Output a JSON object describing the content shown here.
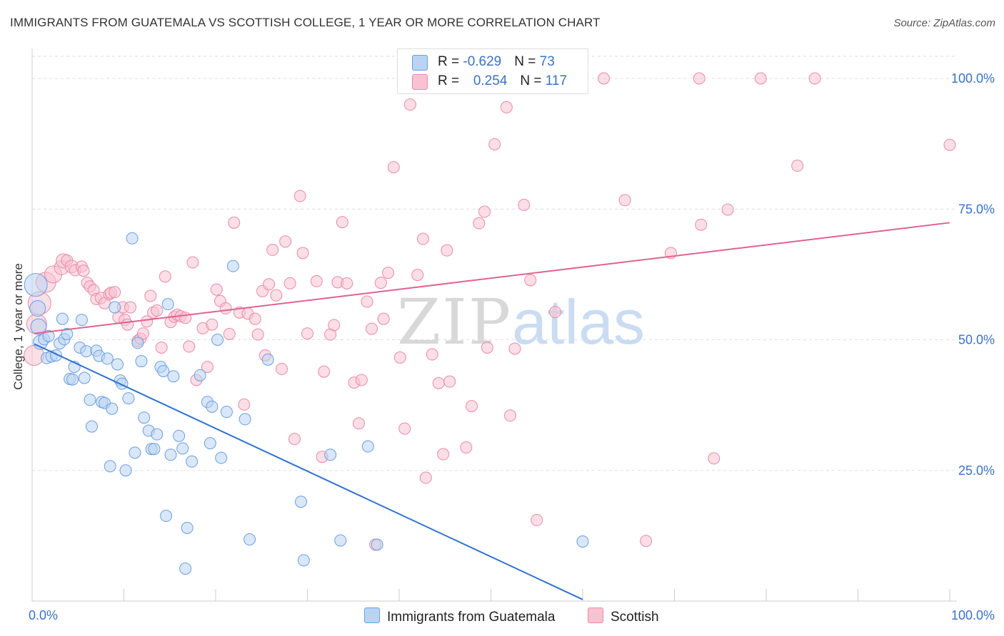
{
  "header": {
    "title": "IMMIGRANTS FROM GUATEMALA VS SCOTTISH COLLEGE, 1 YEAR OR MORE CORRELATION CHART",
    "source": "Source: ZipAtlas.com"
  },
  "watermark": {
    "zip": "ZIP",
    "atlas": "atlas"
  },
  "legend_top": [
    {
      "r_label": "R = ",
      "r_value": "-0.629",
      "n_label": "N = ",
      "n_value": "73"
    },
    {
      "r_label": "R = ",
      "r_value": "0.254",
      "n_label": "N = ",
      "n_value": "117"
    }
  ],
  "colors": {
    "blue_fill": "#b9d3f3",
    "blue_edge": "#6b9fdf",
    "blue_line": "#2f72d0",
    "pink_fill": "#f8c2d2",
    "pink_edge": "#e88ba8",
    "pink_line": "#e0628f",
    "tick_label": "#3a72c6",
    "grid": "#dddddd"
  },
  "chart_data": {
    "type": "scatter",
    "title": "IMMIGRANTS FROM GUATEMALA VS SCOTTISH COLLEGE, 1 YEAR OR MORE CORRELATION CHART",
    "xlabel": "",
    "ylabel": "College, 1 year or more",
    "xlim": [
      0,
      100
    ],
    "ylim": [
      0,
      100
    ],
    "x_tick_labels": [
      {
        "value": 0,
        "label": "0.0%"
      },
      {
        "value": 100,
        "label": "100.0%"
      }
    ],
    "y_tick_labels": [
      {
        "value": 25,
        "label": "25.0%"
      },
      {
        "value": 50,
        "label": "50.0%"
      },
      {
        "value": 75,
        "label": "75.0%"
      },
      {
        "value": 100,
        "label": "100.0%"
      }
    ],
    "grid": true,
    "legend_position": "bottom",
    "series": [
      {
        "name": "Immigrants from Guatemala",
        "color": "#6b9fdf",
        "r": -0.629,
        "n": 73,
        "trend": {
          "x": [
            0,
            60
          ],
          "y": [
            49.2,
            0.3
          ]
        },
        "points": [
          [
            0.4,
            60.5,
            16
          ],
          [
            0.6,
            56.0,
            11
          ],
          [
            0.7,
            52.5,
            11
          ],
          [
            0.9,
            49.5,
            10
          ],
          [
            1.3,
            50.1,
            8
          ],
          [
            1.6,
            46.5,
            8
          ],
          [
            1.8,
            50.7,
            8
          ],
          [
            2.1,
            46.8,
            8
          ],
          [
            2.6,
            47.0,
            8
          ],
          [
            3.0,
            49.3,
            8
          ],
          [
            3.3,
            54.0,
            8
          ],
          [
            3.5,
            50.1,
            8
          ],
          [
            3.8,
            51.1,
            8
          ],
          [
            4.1,
            42.5,
            8
          ],
          [
            4.4,
            42.4,
            8
          ],
          [
            4.6,
            44.8,
            8
          ],
          [
            5.2,
            48.5,
            8
          ],
          [
            5.4,
            53.8,
            8
          ],
          [
            5.7,
            42.7,
            8
          ],
          [
            5.9,
            47.8,
            8
          ],
          [
            6.3,
            38.5,
            8
          ],
          [
            6.5,
            33.4,
            8
          ],
          [
            7.0,
            47.9,
            8
          ],
          [
            7.3,
            46.9,
            8
          ],
          [
            7.6,
            38.1,
            8
          ],
          [
            7.9,
            37.9,
            8
          ],
          [
            8.2,
            46.4,
            8
          ],
          [
            8.5,
            25.8,
            8
          ],
          [
            8.7,
            36.8,
            8
          ],
          [
            9.0,
            56.2,
            8
          ],
          [
            9.3,
            45.3,
            8
          ],
          [
            9.6,
            42.2,
            8
          ],
          [
            9.8,
            41.6,
            8
          ],
          [
            10.2,
            25.0,
            8
          ],
          [
            10.5,
            38.8,
            8
          ],
          [
            10.9,
            69.4,
            8
          ],
          [
            11.2,
            28.4,
            8
          ],
          [
            11.5,
            49.4,
            8
          ],
          [
            11.9,
            45.9,
            8
          ],
          [
            12.2,
            35.1,
            8
          ],
          [
            12.7,
            32.6,
            8
          ],
          [
            13.0,
            29.1,
            8
          ],
          [
            13.3,
            29.1,
            8
          ],
          [
            13.6,
            31.9,
            8
          ],
          [
            14.0,
            44.8,
            8
          ],
          [
            14.3,
            44.0,
            8
          ],
          [
            14.6,
            16.3,
            8
          ],
          [
            14.8,
            56.8,
            8
          ],
          [
            15.1,
            28.0,
            8
          ],
          [
            15.4,
            43.0,
            8
          ],
          [
            16.0,
            31.6,
            8
          ],
          [
            16.4,
            29.2,
            8
          ],
          [
            16.7,
            6.2,
            8
          ],
          [
            16.9,
            14.0,
            8
          ],
          [
            17.4,
            26.7,
            8
          ],
          [
            18.3,
            43.2,
            8
          ],
          [
            19.1,
            38.1,
            8
          ],
          [
            19.4,
            30.2,
            8
          ],
          [
            19.6,
            37.2,
            8
          ],
          [
            20.2,
            50.0,
            8
          ],
          [
            20.6,
            27.4,
            8
          ],
          [
            21.2,
            36.2,
            8
          ],
          [
            21.9,
            64.1,
            8
          ],
          [
            23.2,
            34.8,
            8
          ],
          [
            23.7,
            11.8,
            8
          ],
          [
            25.7,
            46.2,
            8
          ],
          [
            29.3,
            19.0,
            8
          ],
          [
            29.6,
            7.8,
            8
          ],
          [
            32.5,
            28.0,
            8
          ],
          [
            33.6,
            11.6,
            8
          ],
          [
            36.6,
            29.6,
            8
          ],
          [
            37.6,
            10.8,
            8
          ],
          [
            60.0,
            11.4,
            8
          ]
        ]
      },
      {
        "name": "Scottish",
        "color": "#e88ba8",
        "r": 0.254,
        "n": 117,
        "trend": {
          "x": [
            0,
            100
          ],
          "y": [
            51.2,
            72.4
          ]
        },
        "points": [
          [
            0.2,
            47.0,
            14
          ],
          [
            0.5,
            53.0,
            14
          ],
          [
            0.8,
            57.0,
            16
          ],
          [
            1.5,
            61.0,
            14
          ],
          [
            2.3,
            62.5,
            12
          ],
          [
            3.2,
            63.8,
            10
          ],
          [
            3.4,
            65.1,
            10
          ],
          [
            3.8,
            65.2,
            8
          ],
          [
            4.3,
            64.0,
            9
          ],
          [
            4.7,
            63.3,
            8
          ],
          [
            5.4,
            64.0,
            8
          ],
          [
            5.6,
            63.2,
            8
          ],
          [
            6.0,
            60.9,
            8
          ],
          [
            6.3,
            60.2,
            8
          ],
          [
            6.7,
            59.5,
            8
          ],
          [
            7.0,
            57.8,
            8
          ],
          [
            7.5,
            58.0,
            8
          ],
          [
            7.9,
            57.0,
            8
          ],
          [
            8.4,
            58.7,
            8
          ],
          [
            8.6,
            59.0,
            8
          ],
          [
            9.0,
            59.1,
            8
          ],
          [
            9.4,
            54.3,
            8
          ],
          [
            9.9,
            56.2,
            8
          ],
          [
            10.1,
            53.8,
            8
          ],
          [
            10.4,
            52.9,
            8
          ],
          [
            10.7,
            56.2,
            8
          ],
          [
            11.5,
            49.8,
            8
          ],
          [
            11.8,
            50.2,
            8
          ],
          [
            12.1,
            51.2,
            8
          ],
          [
            12.5,
            53.5,
            8
          ],
          [
            12.9,
            58.4,
            8
          ],
          [
            13.2,
            55.2,
            8
          ],
          [
            13.6,
            55.6,
            8
          ],
          [
            14.1,
            48.5,
            8
          ],
          [
            14.5,
            62.1,
            8
          ],
          [
            15.1,
            53.4,
            8
          ],
          [
            15.5,
            54.4,
            8
          ],
          [
            15.8,
            54.8,
            8
          ],
          [
            16.2,
            54.5,
            8
          ],
          [
            16.7,
            54.2,
            8
          ],
          [
            17.1,
            48.7,
            8
          ],
          [
            17.5,
            64.8,
            8
          ],
          [
            17.9,
            42.3,
            8
          ],
          [
            18.6,
            52.2,
            8
          ],
          [
            19.1,
            44.8,
            8
          ],
          [
            19.6,
            52.9,
            8
          ],
          [
            20.1,
            59.6,
            8
          ],
          [
            20.5,
            57.4,
            8
          ],
          [
            21.1,
            56.0,
            8
          ],
          [
            21.5,
            51.1,
            8
          ],
          [
            22.0,
            72.4,
            8
          ],
          [
            22.6,
            55.2,
            8
          ],
          [
            23.1,
            37.6,
            8
          ],
          [
            23.5,
            55.0,
            8
          ],
          [
            24.3,
            54.0,
            8
          ],
          [
            24.6,
            51.0,
            8
          ],
          [
            25.1,
            59.3,
            8
          ],
          [
            25.4,
            47.0,
            8
          ],
          [
            25.8,
            60.6,
            8
          ],
          [
            26.2,
            67.2,
            8
          ],
          [
            26.6,
            58.5,
            8
          ],
          [
            27.2,
            44.4,
            8
          ],
          [
            27.6,
            68.8,
            8
          ],
          [
            28.1,
            60.8,
            8
          ],
          [
            28.6,
            31.0,
            8
          ],
          [
            29.2,
            77.5,
            8
          ],
          [
            29.5,
            66.6,
            8
          ],
          [
            30.0,
            51.2,
            8
          ],
          [
            31.0,
            61.2,
            8
          ],
          [
            31.6,
            27.6,
            8
          ],
          [
            31.8,
            43.9,
            8
          ],
          [
            32.5,
            51.0,
            8
          ],
          [
            32.9,
            52.8,
            8
          ],
          [
            33.3,
            61.0,
            8
          ],
          [
            33.8,
            72.5,
            8
          ],
          [
            34.3,
            60.8,
            8
          ],
          [
            35.1,
            41.8,
            8
          ],
          [
            35.6,
            34.0,
            8
          ],
          [
            35.9,
            42.3,
            8
          ],
          [
            36.5,
            57.3,
            8
          ],
          [
            37.0,
            52.1,
            8
          ],
          [
            37.4,
            10.8,
            8
          ],
          [
            38.0,
            60.9,
            8
          ],
          [
            38.3,
            54.0,
            8
          ],
          [
            38.8,
            62.8,
            8
          ],
          [
            39.4,
            83.0,
            8
          ],
          [
            40.1,
            46.6,
            8
          ],
          [
            40.6,
            33.0,
            8
          ],
          [
            41.2,
            95.0,
            8
          ],
          [
            42.0,
            62.4,
            8
          ],
          [
            42.6,
            69.3,
            8
          ],
          [
            42.9,
            23.6,
            8
          ],
          [
            43.6,
            47.2,
            8
          ],
          [
            44.3,
            41.7,
            8
          ],
          [
            44.8,
            28.1,
            8
          ],
          [
            45.2,
            67.1,
            8
          ],
          [
            45.5,
            42.0,
            8
          ],
          [
            47.3,
            29.4,
            8
          ],
          [
            47.9,
            37.3,
            8
          ],
          [
            48.7,
            72.3,
            8
          ],
          [
            49.3,
            74.5,
            8
          ],
          [
            49.6,
            48.5,
            8
          ],
          [
            50.4,
            87.4,
            8
          ],
          [
            51.7,
            94.5,
            8
          ],
          [
            52.1,
            35.5,
            8
          ],
          [
            52.6,
            48.3,
            8
          ],
          [
            53.6,
            75.8,
            8
          ],
          [
            54.3,
            61.4,
            8
          ],
          [
            55.0,
            15.5,
            8
          ],
          [
            57.0,
            55.3,
            8
          ],
          [
            59.6,
            100.0,
            8
          ],
          [
            62.3,
            100.0,
            8
          ],
          [
            64.6,
            76.7,
            8
          ],
          [
            66.9,
            11.5,
            8
          ],
          [
            69.6,
            66.6,
            8
          ],
          [
            72.7,
            100.0,
            8
          ],
          [
            72.9,
            72.0,
            8
          ],
          [
            74.3,
            27.3,
            8
          ],
          [
            75.8,
            74.9,
            8
          ],
          [
            79.4,
            100.0,
            8
          ],
          [
            83.4,
            83.3,
            8
          ],
          [
            85.3,
            100.0,
            8
          ],
          [
            100.0,
            87.3,
            8
          ]
        ]
      }
    ]
  }
}
